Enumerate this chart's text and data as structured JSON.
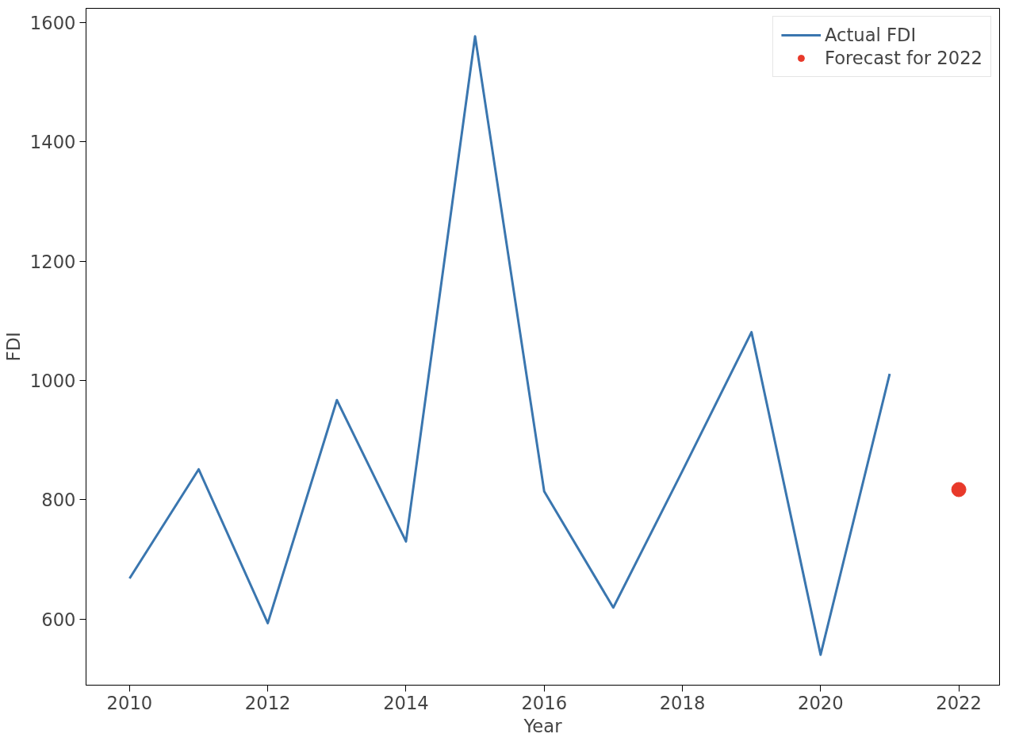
{
  "chart_data": {
    "type": "line",
    "xlabel": "Year",
    "ylabel": "FDI",
    "x": [
      2010,
      2011,
      2012,
      2013,
      2014,
      2015,
      2016,
      2017,
      2018,
      2019,
      2020,
      2021
    ],
    "series": [
      {
        "name": "Actual FDI",
        "color": "#3a76af",
        "values": [
          668,
          851,
          593,
          967,
          730,
          1577,
          814,
          619,
          848,
          1081,
          540,
          1011
        ]
      },
      {
        "name": "Forecast for 2022",
        "type": "scatter",
        "color": "#e8392a",
        "x": [
          2022
        ],
        "values": [
          817
        ]
      }
    ],
    "xlim": [
      2009.37,
      2022.59
    ],
    "ylim": [
      489,
      1624
    ],
    "xticks": [
      2010,
      2012,
      2014,
      2016,
      2018,
      2020,
      2022
    ],
    "yticks": [
      600,
      800,
      1000,
      1200,
      1400,
      1600
    ],
    "grid": false,
    "legend": "top right"
  }
}
